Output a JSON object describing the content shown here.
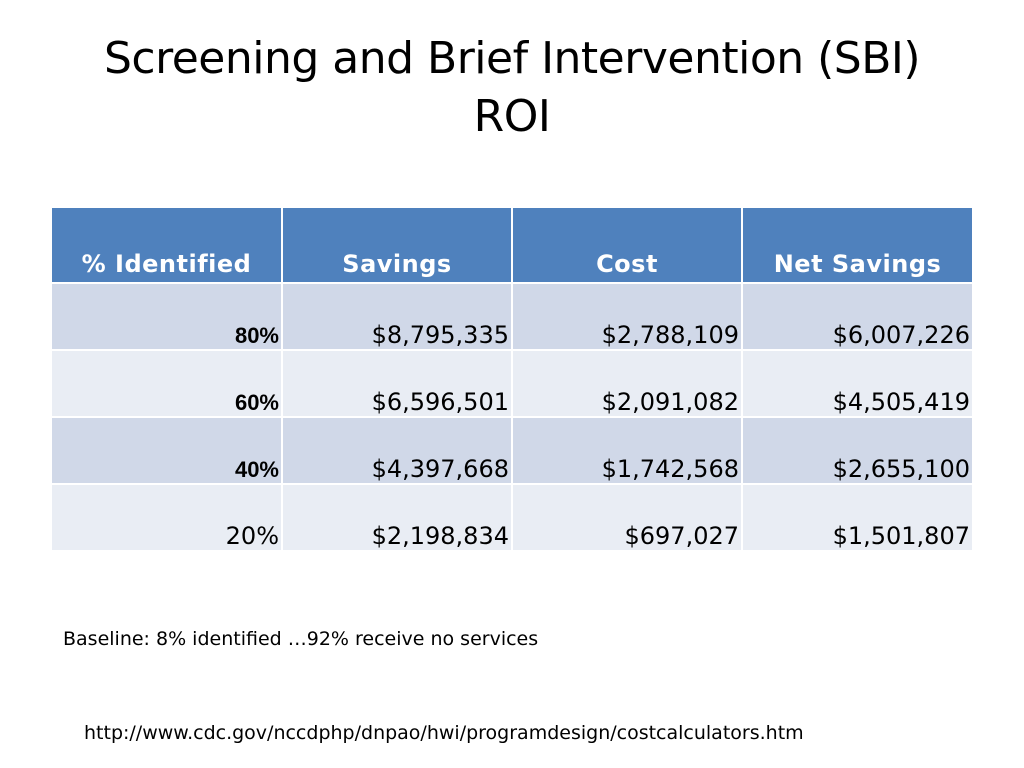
{
  "title": {
    "line1": "Screening and Brief Intervention (SBI)",
    "line2": "ROI"
  },
  "table": {
    "headers": [
      "% Identified",
      "Savings",
      "Cost",
      "Net Savings"
    ],
    "rows": [
      {
        "identified": "80%",
        "savings": "$8,795,335",
        "cost": "$2,788,109",
        "net_savings": "$6,007,226"
      },
      {
        "identified": "60%",
        "savings": "$6,596,501",
        "cost": "$2,091,082",
        "net_savings": "$4,505,419"
      },
      {
        "identified": "40%",
        "savings": "$4,397,668",
        "cost": "$1,742,568",
        "net_savings": "$2,655,100"
      },
      {
        "identified": "20%",
        "savings": "$2,198,834",
        "cost": "$697,027",
        "net_savings": "$1,501,807"
      }
    ]
  },
  "baseline_note": "Baseline: 8% identified …92% receive no services",
  "source_url": "http://www.cdc.gov/nccdphp/dnpao/hwi/programdesign/costcalculators.htm",
  "colors": {
    "header_bg": "#4f81bd",
    "row_band_dark": "#d0d8e8",
    "row_band_light": "#e9edf4"
  }
}
